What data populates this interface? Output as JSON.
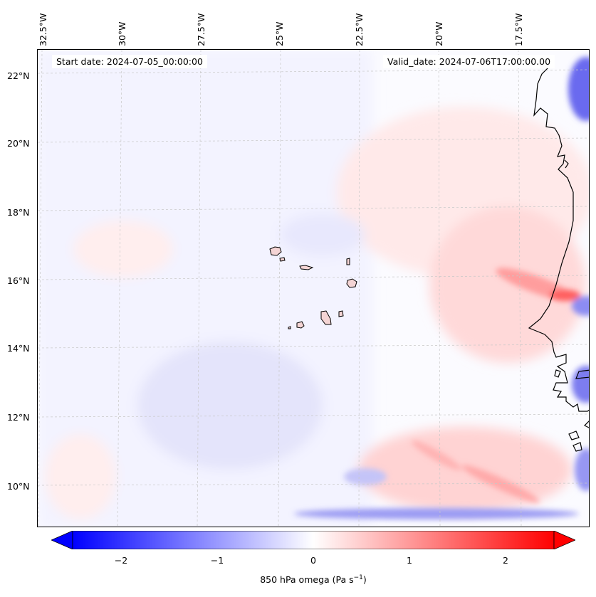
{
  "map": {
    "start_date": "Start date: 2024-07-05_00:00:00",
    "valid_date": "Valid_date: 2024-07-06T17:00:00.00",
    "lon_labels": [
      "32.5°W",
      "30°W",
      "27.5°W",
      "25°W",
      "22.5°W",
      "20°W",
      "17.5°W"
    ],
    "lat_labels": [
      "22°N",
      "20°N",
      "18°N",
      "16°N",
      "14°N",
      "12°N",
      "10°N"
    ],
    "colormap": "bwr",
    "colors": {
      "negative": "#0000ff",
      "zero": "#ffffff",
      "positive": "#ff0000"
    }
  },
  "colorbar": {
    "ticks": [
      "−2",
      "−1",
      "0",
      "1",
      "2"
    ],
    "tick_values": [
      -2,
      -1,
      0,
      1,
      2
    ],
    "range": [
      -2.5,
      2.5
    ],
    "label": "850 hPa omega (Pa s",
    "label_sup": "−1",
    "label_end": ")"
  }
}
